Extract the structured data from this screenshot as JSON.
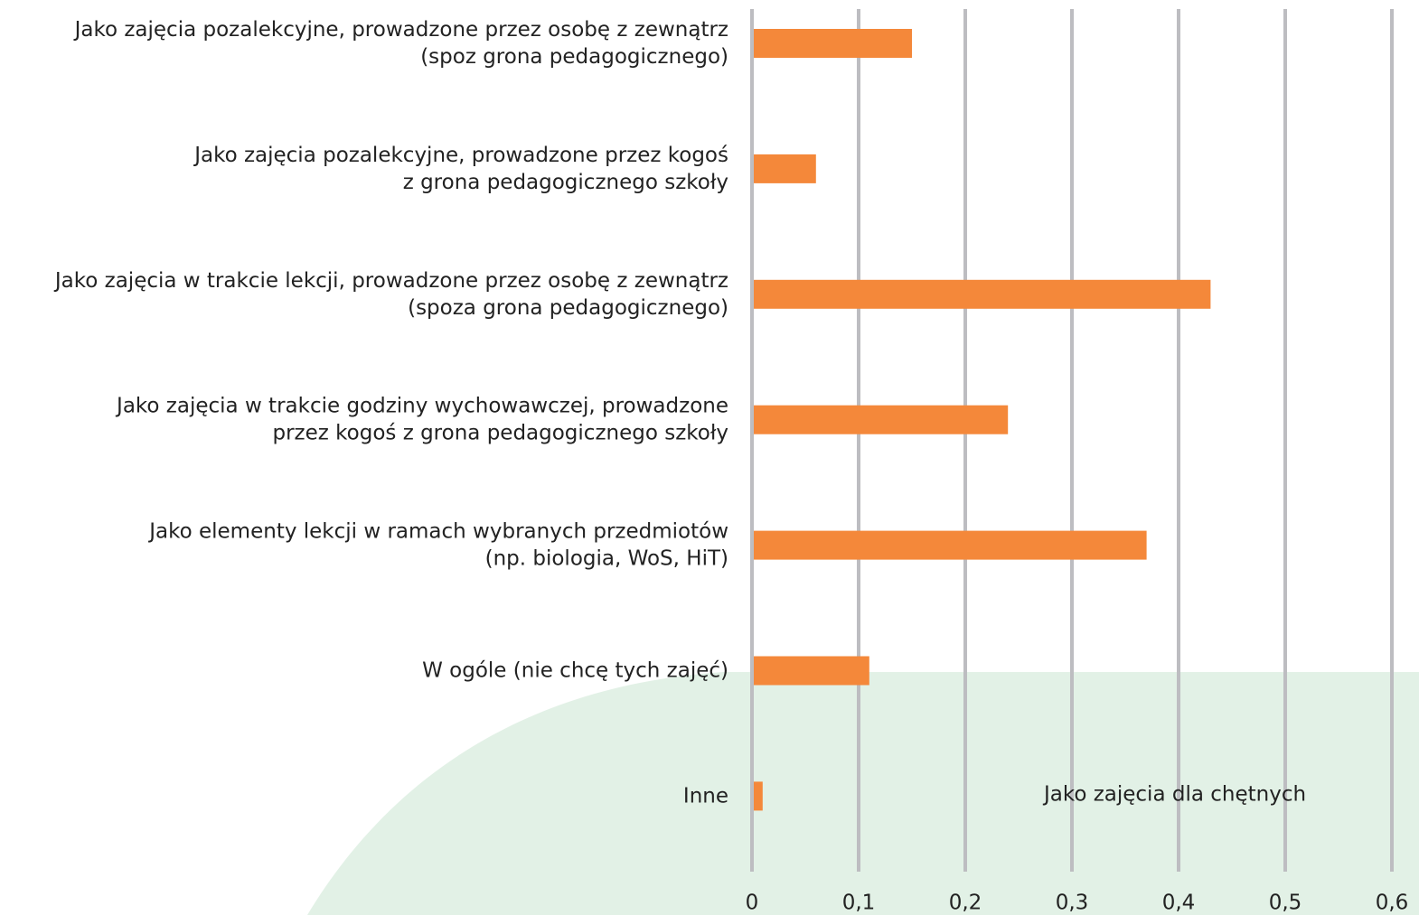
{
  "chart_data": {
    "type": "barh",
    "categories": [
      [
        "Jako zajęcia pozalekcyjne, prowadzone przez osobę z zewnątrz",
        "(spoz grona pedagogicznego)"
      ],
      [
        "Jako zajęcia pozalekcyjne, prowadzone przez kogoś",
        "z grona pedagogicznego szkoły"
      ],
      [
        "Jako zajęcia w trakcie lekcji, prowadzone przez osobę z zewnątrz",
        "(spoza grona pedagogicznego)"
      ],
      [
        "Jako zajęcia w trakcie godziny wychowawczej, prowadzone",
        "przez kogoś z grona pedagogicznego szkoły"
      ],
      [
        "Jako elementy lekcji w ramach wybranych przedmiotów",
        "(np. biologia, WoS, HiT)"
      ],
      [
        "W ogóle (nie chcę tych zajęć)"
      ],
      [
        "Inne"
      ]
    ],
    "values": [
      0.15,
      0.06,
      0.43,
      0.24,
      0.37,
      0.11,
      0.01
    ],
    "color": "#f4883a",
    "xlim": [
      0,
      0.6
    ],
    "xticks": [
      0,
      {
        "value": 0.1,
        "label": "0,1"
      },
      {
        "value": 0.2,
        "label": "0,2"
      },
      {
        "value": 0.3,
        "label": "0,3"
      },
      {
        "value": 0.4,
        "label": "0,4"
      },
      {
        "value": 0.5,
        "label": "0,5"
      },
      {
        "value": 0.6,
        "label": "0,6"
      }
    ],
    "grid": true,
    "annotation": "Jako zajęcia dla chętnych"
  }
}
